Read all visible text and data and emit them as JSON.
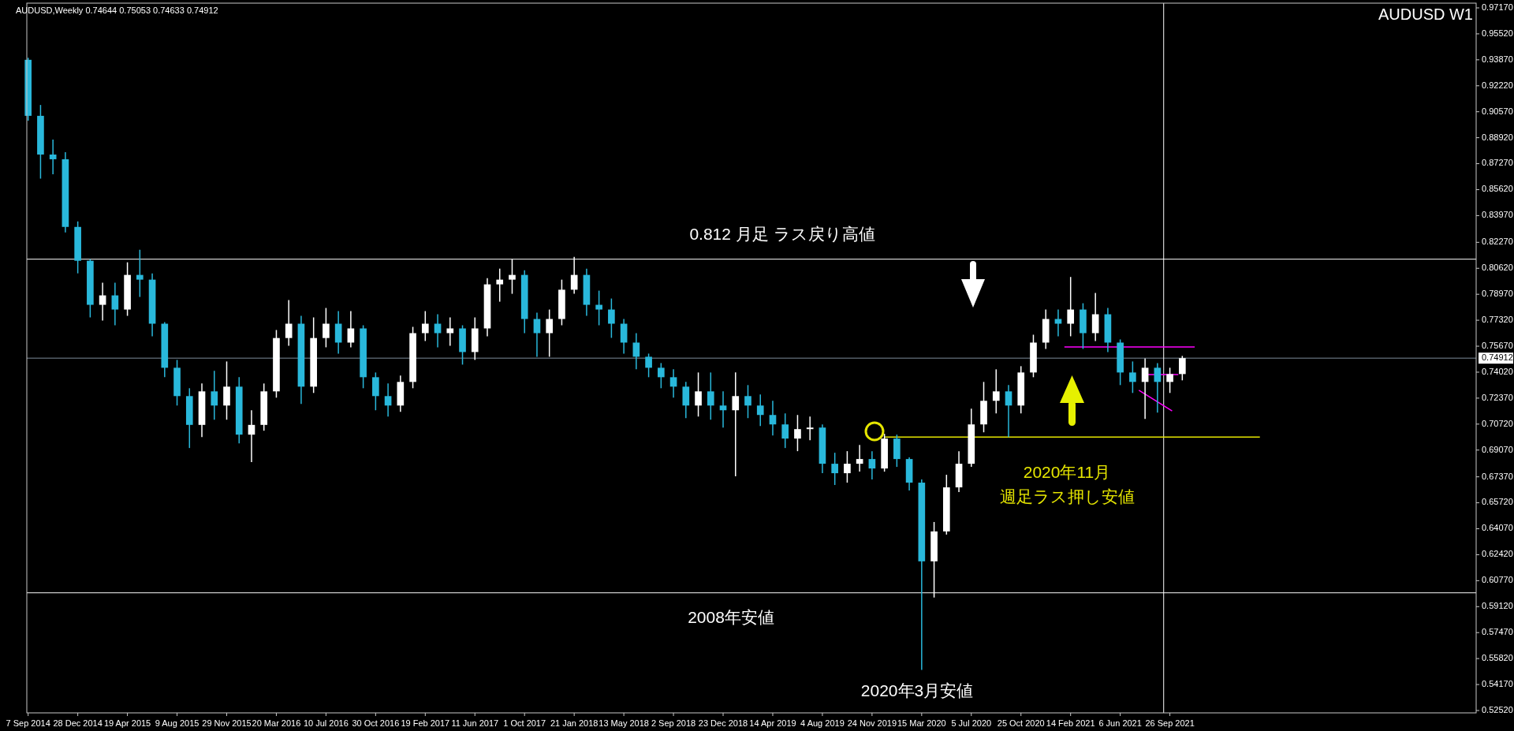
{
  "chart_data": {
    "type": "candlestick",
    "title": "AUDUSD,Weekly  0.74644 0.75053 0.74633 0.74912",
    "subtitle": "AUDUSD W1",
    "x": [
      "2014-09-07",
      "2014-10-05",
      "2014-11-02",
      "2014-11-30",
      "2014-12-28",
      "2015-01-25",
      "2015-02-22",
      "2015-03-22",
      "2015-04-19",
      "2015-05-17",
      "2015-06-14",
      "2015-07-12",
      "2015-08-09",
      "2015-09-06",
      "2015-10-04",
      "2015-11-01",
      "2015-11-29",
      "2015-12-27",
      "2016-01-24",
      "2016-02-21",
      "2016-03-20",
      "2016-04-17",
      "2016-05-15",
      "2016-06-12",
      "2016-07-10",
      "2016-08-07",
      "2016-09-04",
      "2016-10-02",
      "2016-10-30",
      "2016-11-27",
      "2016-12-25",
      "2017-01-22",
      "2017-02-19",
      "2017-03-19",
      "2017-04-16",
      "2017-05-14",
      "2017-06-11",
      "2017-07-09",
      "2017-08-06",
      "2017-09-03",
      "2017-10-01",
      "2017-10-29",
      "2017-11-26",
      "2017-12-24",
      "2018-01-21",
      "2018-02-18",
      "2018-03-18",
      "2018-04-15",
      "2018-05-13",
      "2018-06-10",
      "2018-07-08",
      "2018-08-05",
      "2018-09-02",
      "2018-09-30",
      "2018-10-28",
      "2018-11-25",
      "2018-12-23",
      "2019-01-20",
      "2019-02-17",
      "2019-03-17",
      "2019-04-14",
      "2019-05-12",
      "2019-06-09",
      "2019-07-07",
      "2019-08-04",
      "2019-09-01",
      "2019-09-29",
      "2019-10-27",
      "2019-11-24",
      "2019-12-22",
      "2020-01-19",
      "2020-02-16",
      "2020-03-15",
      "2020-04-12",
      "2020-05-10",
      "2020-06-07",
      "2020-07-05",
      "2020-08-02",
      "2020-08-30",
      "2020-09-27",
      "2020-10-25",
      "2020-11-22",
      "2020-12-20",
      "2021-01-17",
      "2021-02-14",
      "2021-03-14",
      "2021-04-11",
      "2021-05-09",
      "2021-06-06",
      "2021-07-04",
      "2021-08-01",
      "2021-08-29",
      "2021-09-26",
      "2021-10-24"
    ],
    "ohlc": [
      [
        0.9387,
        0.94,
        0.9,
        0.9031
      ],
      [
        0.9031,
        0.91,
        0.8632,
        0.8785
      ],
      [
        0.8785,
        0.888,
        0.866,
        0.8755
      ],
      [
        0.8755,
        0.88,
        0.829,
        0.8325
      ],
      [
        0.8325,
        0.836,
        0.803,
        0.811
      ],
      [
        0.811,
        0.812,
        0.775,
        0.783
      ],
      [
        0.783,
        0.797,
        0.773,
        0.789
      ],
      [
        0.789,
        0.797,
        0.77,
        0.78
      ],
      [
        0.78,
        0.81,
        0.776,
        0.802
      ],
      [
        0.802,
        0.818,
        0.788,
        0.799
      ],
      [
        0.799,
        0.803,
        0.763,
        0.771
      ],
      [
        0.771,
        0.772,
        0.737,
        0.743
      ],
      [
        0.743,
        0.748,
        0.719,
        0.725
      ],
      [
        0.725,
        0.73,
        0.692,
        0.7067
      ],
      [
        0.7067,
        0.733,
        0.699,
        0.728
      ],
      [
        0.728,
        0.741,
        0.71,
        0.719
      ],
      [
        0.719,
        0.747,
        0.71,
        0.731
      ],
      [
        0.731,
        0.737,
        0.695,
        0.7005
      ],
      [
        0.7005,
        0.716,
        0.683,
        0.7067
      ],
      [
        0.7067,
        0.733,
        0.703,
        0.728
      ],
      [
        0.728,
        0.767,
        0.724,
        0.7619
      ],
      [
        0.7619,
        0.786,
        0.757,
        0.771
      ],
      [
        0.771,
        0.776,
        0.72,
        0.731
      ],
      [
        0.731,
        0.775,
        0.727,
        0.7619
      ],
      [
        0.7619,
        0.781,
        0.756,
        0.771
      ],
      [
        0.771,
        0.779,
        0.752,
        0.759
      ],
      [
        0.759,
        0.779,
        0.756,
        0.768
      ],
      [
        0.768,
        0.77,
        0.73,
        0.737
      ],
      [
        0.737,
        0.74,
        0.716,
        0.725
      ],
      [
        0.725,
        0.733,
        0.712,
        0.719
      ],
      [
        0.719,
        0.738,
        0.715,
        0.734
      ],
      [
        0.734,
        0.769,
        0.73,
        0.765
      ],
      [
        0.765,
        0.779,
        0.76,
        0.771
      ],
      [
        0.771,
        0.777,
        0.756,
        0.765
      ],
      [
        0.765,
        0.775,
        0.757,
        0.768
      ],
      [
        0.768,
        0.77,
        0.745,
        0.753
      ],
      [
        0.753,
        0.775,
        0.748,
        0.768
      ],
      [
        0.768,
        0.8,
        0.763,
        0.796
      ],
      [
        0.796,
        0.806,
        0.785,
        0.799
      ],
      [
        0.799,
        0.812,
        0.79,
        0.802
      ],
      [
        0.802,
        0.805,
        0.765,
        0.774
      ],
      [
        0.774,
        0.778,
        0.75,
        0.765
      ],
      [
        0.765,
        0.78,
        0.75,
        0.774
      ],
      [
        0.774,
        0.799,
        0.77,
        0.7926
      ],
      [
        0.7926,
        0.8135,
        0.79,
        0.802
      ],
      [
        0.802,
        0.806,
        0.776,
        0.783
      ],
      [
        0.783,
        0.792,
        0.77,
        0.78
      ],
      [
        0.78,
        0.787,
        0.762,
        0.771
      ],
      [
        0.771,
        0.774,
        0.752,
        0.759
      ],
      [
        0.759,
        0.765,
        0.742,
        0.75
      ],
      [
        0.75,
        0.752,
        0.737,
        0.743
      ],
      [
        0.743,
        0.746,
        0.73,
        0.737
      ],
      [
        0.737,
        0.742,
        0.724,
        0.731
      ],
      [
        0.731,
        0.734,
        0.711,
        0.719
      ],
      [
        0.719,
        0.74,
        0.712,
        0.728
      ],
      [
        0.728,
        0.74,
        0.71,
        0.719
      ],
      [
        0.719,
        0.728,
        0.705,
        0.716
      ],
      [
        0.716,
        0.74,
        0.674,
        0.725
      ],
      [
        0.725,
        0.732,
        0.711,
        0.719
      ],
      [
        0.719,
        0.726,
        0.706,
        0.713
      ],
      [
        0.713,
        0.722,
        0.7,
        0.707
      ],
      [
        0.707,
        0.714,
        0.692,
        0.698
      ],
      [
        0.698,
        0.713,
        0.69,
        0.704
      ],
      [
        0.704,
        0.712,
        0.697,
        0.705
      ],
      [
        0.705,
        0.707,
        0.676,
        0.682
      ],
      [
        0.682,
        0.689,
        0.6685,
        0.676
      ],
      [
        0.676,
        0.69,
        0.67,
        0.682
      ],
      [
        0.682,
        0.694,
        0.677,
        0.685
      ],
      [
        0.685,
        0.69,
        0.672,
        0.679
      ],
      [
        0.679,
        0.701,
        0.677,
        0.698
      ],
      [
        0.698,
        0.7005,
        0.68,
        0.685
      ],
      [
        0.685,
        0.686,
        0.665,
        0.67
      ],
      [
        0.67,
        0.672,
        0.551,
        0.62
      ],
      [
        0.62,
        0.645,
        0.597,
        0.639
      ],
      [
        0.639,
        0.675,
        0.637,
        0.667
      ],
      [
        0.667,
        0.69,
        0.664,
        0.682
      ],
      [
        0.682,
        0.717,
        0.68,
        0.707
      ],
      [
        0.707,
        0.734,
        0.702,
        0.722
      ],
      [
        0.722,
        0.742,
        0.714,
        0.728
      ],
      [
        0.728,
        0.732,
        0.699,
        0.719
      ],
      [
        0.719,
        0.744,
        0.714,
        0.74
      ],
      [
        0.74,
        0.764,
        0.737,
        0.759
      ],
      [
        0.759,
        0.78,
        0.755,
        0.774
      ],
      [
        0.774,
        0.78,
        0.763,
        0.771
      ],
      [
        0.771,
        0.8007,
        0.763,
        0.78
      ],
      [
        0.78,
        0.784,
        0.755,
        0.765
      ],
      [
        0.765,
        0.7905,
        0.76,
        0.777
      ],
      [
        0.777,
        0.781,
        0.753,
        0.759
      ],
      [
        0.759,
        0.761,
        0.732,
        0.74
      ],
      [
        0.74,
        0.747,
        0.727,
        0.734
      ],
      [
        0.734,
        0.749,
        0.7105,
        0.743
      ],
      [
        0.743,
        0.746,
        0.7145,
        0.734
      ],
      [
        0.734,
        0.743,
        0.727,
        0.739
      ],
      [
        0.739,
        0.75053,
        0.735,
        0.74912
      ]
    ],
    "colors": [
      "#29b8db",
      "#29b8db",
      "#29b8db",
      "#29b8db",
      "#29b8db",
      "#29b8db",
      "#ffffff",
      "#29b8db",
      "#ffffff",
      "#29b8db",
      "#29b8db",
      "#29b8db",
      "#29b8db",
      "#29b8db",
      "#ffffff",
      "#29b8db",
      "#ffffff",
      "#29b8db",
      "#ffffff",
      "#ffffff",
      "#ffffff",
      "#ffffff",
      "#29b8db",
      "#ffffff",
      "#ffffff",
      "#29b8db",
      "#ffffff",
      "#29b8db",
      "#29b8db",
      "#29b8db",
      "#ffffff",
      "#ffffff",
      "#ffffff",
      "#29b8db",
      "#ffffff",
      "#29b8db",
      "#ffffff",
      "#ffffff",
      "#ffffff",
      "#ffffff",
      "#29b8db",
      "#29b8db",
      "#ffffff",
      "#ffffff",
      "#ffffff",
      "#29b8db",
      "#29b8db",
      "#29b8db",
      "#29b8db",
      "#29b8db",
      "#29b8db",
      "#29b8db",
      "#29b8db",
      "#29b8db",
      "#ffffff",
      "#29b8db",
      "#29b8db",
      "#ffffff",
      "#29b8db",
      "#29b8db",
      "#29b8db",
      "#29b8db",
      "#ffffff",
      "#ffffff",
      "#29b8db",
      "#29b8db",
      "#ffffff",
      "#ffffff",
      "#29b8db",
      "#ffffff",
      "#29b8db",
      "#29b8db",
      "#29b8db",
      "#ffffff",
      "#ffffff",
      "#ffffff",
      "#ffffff",
      "#ffffff",
      "#ffffff",
      "#29b8db",
      "#ffffff",
      "#ffffff",
      "#ffffff",
      "#29b8db",
      "#ffffff",
      "#29b8db",
      "#ffffff",
      "#29b8db",
      "#29b8db",
      "#29b8db",
      "#ffffff",
      "#29b8db",
      "#ffffff",
      "#ffffff"
    ],
    "series": [
      {
        "type": "line",
        "color": "#e6e600",
        "x": [
          "2019-12-22",
          "2022-04-17"
        ],
        "values": [
          0.699,
          0.699
        ]
      },
      {
        "type": "line",
        "color": "#ff00ff",
        "x": [
          "2021-01-31",
          "2021-11-21"
        ],
        "values": [
          0.7562,
          0.7562
        ]
      },
      {
        "type": "line",
        "color": "#ff00ff",
        "x": [
          "2021-08-08",
          "2021-10-15"
        ],
        "values": [
          0.7387,
          0.7387
        ]
      },
      {
        "type": "line",
        "color": "#ff00ff",
        "x": [
          "2021-07-18",
          "2021-10-01"
        ],
        "values": [
          0.7287,
          0.7156
        ]
      }
    ],
    "ref_lines": [
      {
        "axis": "y",
        "value": 0.812,
        "color": "#ffffff"
      },
      {
        "axis": "y",
        "value": 0.6,
        "color": "#ffffff"
      },
      {
        "axis": "y",
        "value": 0.74912,
        "label": "0.74912",
        "color": "#7b8a99"
      },
      {
        "axis": "x",
        "value": "2021-09-12",
        "color": "#ffffff"
      }
    ],
    "annotations": [
      "0.812 月足 ラス戻り高値",
      "2008年安値",
      "2020年3月安値",
      "2020年11月",
      "週足ラス押し安値"
    ],
    "xlim": [
      "2014-09-04",
      "2023-08-18"
    ],
    "xticks": [
      {
        "value": "2014-09-07",
        "label": "7 Sep 2014"
      },
      {
        "value": "2014-12-28",
        "label": "28 Dec 2014"
      },
      {
        "value": "2015-04-19",
        "label": "19 Apr 2015"
      },
      {
        "value": "2015-08-09",
        "label": "9 Aug 2015"
      },
      {
        "value": "2015-11-29",
        "label": "29 Nov 2015"
      },
      {
        "value": "2016-03-20",
        "label": "20 Mar 2016"
      },
      {
        "value": "2016-07-10",
        "label": "10 Jul 2016"
      },
      {
        "value": "2016-10-30",
        "label": "30 Oct 2016"
      },
      {
        "value": "2017-02-19",
        "label": "19 Feb 2017"
      },
      {
        "value": "2017-06-11",
        "label": "11 Jun 2017"
      },
      {
        "value": "2017-10-01",
        "label": "1 Oct 2017"
      },
      {
        "value": "2018-01-21",
        "label": "21 Jan 2018"
      },
      {
        "value": "2018-05-13",
        "label": "13 May 2018"
      },
      {
        "value": "2018-09-02",
        "label": "2 Sep 2018"
      },
      {
        "value": "2018-12-23",
        "label": "23 Dec 2018"
      },
      {
        "value": "2019-04-14",
        "label": "14 Apr 2019"
      },
      {
        "value": "2019-08-04",
        "label": "4 Aug 2019"
      },
      {
        "value": "2019-11-24",
        "label": "24 Nov 2019"
      },
      {
        "value": "2020-03-15",
        "label": "15 Mar 2020"
      },
      {
        "value": "2020-07-05",
        "label": "5 Jul 2020"
      },
      {
        "value": "2020-10-25",
        "label": "25 Oct 2020"
      },
      {
        "value": "2021-02-14",
        "label": "14 Feb 2021"
      },
      {
        "value": "2021-06-06",
        "label": "6 Jun 2021"
      },
      {
        "value": "2021-09-26",
        "label": "26 Sep 2021"
      }
    ],
    "ylim": [
      0.5237,
      0.9747
    ],
    "yticks": [
      {
        "value": 0.9717,
        "label": "0.97170"
      },
      {
        "value": 0.9552,
        "label": "0.95520"
      },
      {
        "value": 0.9387,
        "label": "0.93870"
      },
      {
        "value": 0.9222,
        "label": "0.92220"
      },
      {
        "value": 0.9057,
        "label": "0.90570"
      },
      {
        "value": 0.8892,
        "label": "0.88920"
      },
      {
        "value": 0.8727,
        "label": "0.87270"
      },
      {
        "value": 0.8562,
        "label": "0.85620"
      },
      {
        "value": 0.8397,
        "label": "0.83970"
      },
      {
        "value": 0.8227,
        "label": "0.82270"
      },
      {
        "value": 0.8062,
        "label": "0.80620"
      },
      {
        "value": 0.7897,
        "label": "0.78970"
      },
      {
        "value": 0.7732,
        "label": "0.77320"
      },
      {
        "value": 0.7567,
        "label": "0.75670"
      },
      {
        "value": 0.7402,
        "label": "0.74020"
      },
      {
        "value": 0.7237,
        "label": "0.72370"
      },
      {
        "value": 0.7072,
        "label": "0.70720"
      },
      {
        "value": 0.6907,
        "label": "0.69070"
      },
      {
        "value": 0.6737,
        "label": "0.67370"
      },
      {
        "value": 0.6572,
        "label": "0.65720"
      },
      {
        "value": 0.6407,
        "label": "0.64070"
      },
      {
        "value": 0.6242,
        "label": "0.62420"
      },
      {
        "value": 0.6077,
        "label": "0.60770"
      },
      {
        "value": 0.5912,
        "label": "0.59120"
      },
      {
        "value": 0.5747,
        "label": "0.57470"
      },
      {
        "value": 0.5582,
        "label": "0.55820"
      },
      {
        "value": 0.5417,
        "label": "0.54170"
      },
      {
        "value": 0.5252,
        "label": "0.52520"
      }
    ],
    "grid": false
  }
}
